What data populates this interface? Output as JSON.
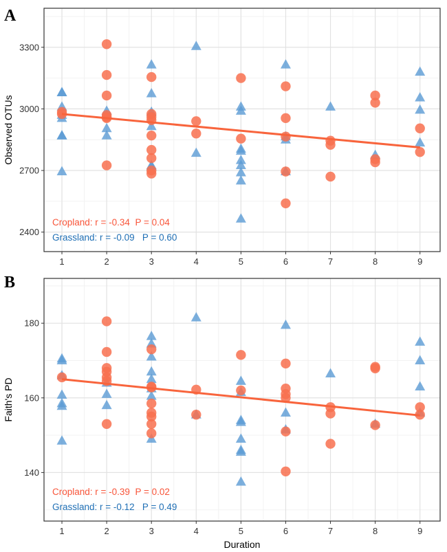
{
  "colors": {
    "cropland": "#F8704F",
    "grassland": "#5B9BD5",
    "cropland_text": "#F8553A",
    "grassland_text": "#1F6FB5",
    "grid_major": "#E2E2E2",
    "grid_minor": "#F2F2F2",
    "fit_line": "#F8643C"
  },
  "chart_data": [
    {
      "type": "scatter",
      "panel_label": "A",
      "title": "",
      "xlabel": "",
      "ylabel": "Observed OTUs",
      "xlim": [
        0.6,
        9.45
      ],
      "ylim": [
        2305,
        3490
      ],
      "x_ticks": [
        1,
        2,
        3,
        4,
        5,
        6,
        7,
        8,
        9
      ],
      "y_ticks": [
        2400,
        2700,
        3000,
        3300
      ],
      "grid": true,
      "series": [
        {
          "name": "Cropland",
          "marker": "circle",
          "points": [
            [
              1,
              2985
            ],
            [
              1,
              2975
            ],
            [
              2,
              3315
            ],
            [
              2,
              3165
            ],
            [
              2,
              3065
            ],
            [
              2,
              2970
            ],
            [
              2,
              2960
            ],
            [
              2,
              2955
            ],
            [
              2,
              2725
            ],
            [
              3,
              3155
            ],
            [
              3,
              2975
            ],
            [
              3,
              2960
            ],
            [
              3,
              2945
            ],
            [
              3,
              2870
            ],
            [
              3,
              2800
            ],
            [
              3,
              2760
            ],
            [
              3,
              2700
            ],
            [
              3,
              2685
            ],
            [
              4,
              2940
            ],
            [
              4,
              2880
            ],
            [
              5,
              3150
            ],
            [
              5,
              2855
            ],
            [
              6,
              3110
            ],
            [
              6,
              2955
            ],
            [
              6,
              2865
            ],
            [
              6,
              2695
            ],
            [
              6,
              2540
            ],
            [
              7,
              2845
            ],
            [
              7,
              2825
            ],
            [
              7,
              2670
            ],
            [
              8,
              3065
            ],
            [
              8,
              3030
            ],
            [
              8,
              2755
            ],
            [
              8,
              2740
            ],
            [
              9,
              2905
            ],
            [
              9,
              2790
            ]
          ]
        },
        {
          "name": "Grassland",
          "marker": "triangle",
          "points": [
            [
              1,
              3080
            ],
            [
              1,
              3080
            ],
            [
              1,
              3010
            ],
            [
              1,
              2970
            ],
            [
              1,
              2955
            ],
            [
              1,
              2870
            ],
            [
              1,
              2870
            ],
            [
              1,
              2695
            ],
            [
              2,
              2990
            ],
            [
              2,
              2970
            ],
            [
              2,
              2905
            ],
            [
              2,
              2870
            ],
            [
              3,
              3215
            ],
            [
              3,
              3075
            ],
            [
              3,
              2985
            ],
            [
              3,
              2915
            ],
            [
              3,
              2725
            ],
            [
              3,
              2720
            ],
            [
              4,
              3305
            ],
            [
              4,
              2785
            ],
            [
              5,
              3010
            ],
            [
              5,
              2990
            ],
            [
              5,
              2805
            ],
            [
              5,
              2795
            ],
            [
              5,
              2750
            ],
            [
              5,
              2725
            ],
            [
              5,
              2690
            ],
            [
              5,
              2650
            ],
            [
              5,
              2465
            ],
            [
              6,
              3215
            ],
            [
              6,
              2865
            ],
            [
              6,
              2850
            ],
            [
              6,
              2695
            ],
            [
              7,
              3010
            ],
            [
              8,
              2775
            ],
            [
              9,
              3180
            ],
            [
              9,
              3055
            ],
            [
              9,
              2995
            ],
            [
              9,
              2835
            ]
          ]
        }
      ],
      "fit": {
        "series": "Cropland",
        "x": [
          1,
          9
        ],
        "y": [
          2975,
          2812
        ]
      },
      "annotations": [
        {
          "series": "Cropland",
          "text": "Cropland: r = -0.34  P = 0.04"
        },
        {
          "series": "Grassland",
          "text": "Grassland: r = -0.09   P = 0.60"
        }
      ]
    },
    {
      "type": "scatter",
      "panel_label": "B",
      "title": "",
      "xlabel": "Duration",
      "ylabel": "Faith's PD",
      "xlim": [
        0.6,
        9.45
      ],
      "ylim": [
        127,
        192
      ],
      "x_ticks": [
        1,
        2,
        3,
        4,
        5,
        6,
        7,
        8,
        9
      ],
      "y_ticks": [
        140,
        160,
        180
      ],
      "grid": true,
      "series": [
        {
          "name": "Cropland",
          "marker": "circle",
          "points": [
            [
              1,
              165.5
            ],
            [
              2,
              180.5
            ],
            [
              2,
              172.3
            ],
            [
              2,
              168.0
            ],
            [
              2,
              167.0
            ],
            [
              2,
              165.5
            ],
            [
              2,
              164.5
            ],
            [
              2,
              153.0
            ],
            [
              3,
              173.0
            ],
            [
              3,
              163.0
            ],
            [
              3,
              162.8
            ],
            [
              3,
              158.5
            ],
            [
              3,
              156.0
            ],
            [
              3,
              155.0
            ],
            [
              3,
              153.0
            ],
            [
              3,
              150.5
            ],
            [
              4,
              162.2
            ],
            [
              4,
              155.5
            ],
            [
              5,
              171.5
            ],
            [
              5,
              162.0
            ],
            [
              6,
              169.2
            ],
            [
              6,
              162.5
            ],
            [
              6,
              161.0
            ],
            [
              6,
              160.0
            ],
            [
              6,
              151.0
            ],
            [
              6,
              140.3
            ],
            [
              7,
              157.5
            ],
            [
              7,
              155.8
            ],
            [
              7,
              147.7
            ],
            [
              8,
              168.3
            ],
            [
              8,
              167.9
            ],
            [
              8,
              152.7
            ],
            [
              9,
              157.5
            ],
            [
              9,
              155.5
            ]
          ]
        },
        {
          "name": "Grassland",
          "marker": "triangle",
          "points": [
            [
              1,
              170.5
            ],
            [
              1,
              170.0
            ],
            [
              1,
              166.0
            ],
            [
              1,
              160.8
            ],
            [
              1,
              158.5
            ],
            [
              1,
              157.8
            ],
            [
              1,
              148.5
            ],
            [
              2,
              164.0
            ],
            [
              2,
              161.0
            ],
            [
              2,
              158.0
            ],
            [
              3,
              176.5
            ],
            [
              3,
              174.5
            ],
            [
              3,
              171.0
            ],
            [
              3,
              167.0
            ],
            [
              3,
              165.0
            ],
            [
              3,
              162.5
            ],
            [
              3,
              160.5
            ],
            [
              3,
              149.0
            ],
            [
              4,
              181.5
            ],
            [
              4,
              155.5
            ],
            [
              5,
              164.5
            ],
            [
              5,
              161.5
            ],
            [
              5,
              154.0
            ],
            [
              5,
              153.5
            ],
            [
              5,
              149.0
            ],
            [
              5,
              146.0
            ],
            [
              5,
              145.5
            ],
            [
              5,
              137.5
            ],
            [
              6,
              179.5
            ],
            [
              6,
              156.0
            ],
            [
              6,
              151.5
            ],
            [
              7,
              166.5
            ],
            [
              8,
              153.0
            ],
            [
              9,
              175.0
            ],
            [
              9,
              170.0
            ],
            [
              9,
              163.0
            ],
            [
              9,
              156.0
            ]
          ]
        }
      ],
      "fit": {
        "series": "Cropland",
        "x": [
          1,
          9
        ],
        "y": [
          165.0,
          155.3
        ]
      },
      "annotations": [
        {
          "series": "Cropland",
          "text": "Cropland: r = -0.39  P = 0.02"
        },
        {
          "series": "Grassland",
          "text": "Grassland: r = -0.12   P = 0.49"
        }
      ]
    }
  ]
}
